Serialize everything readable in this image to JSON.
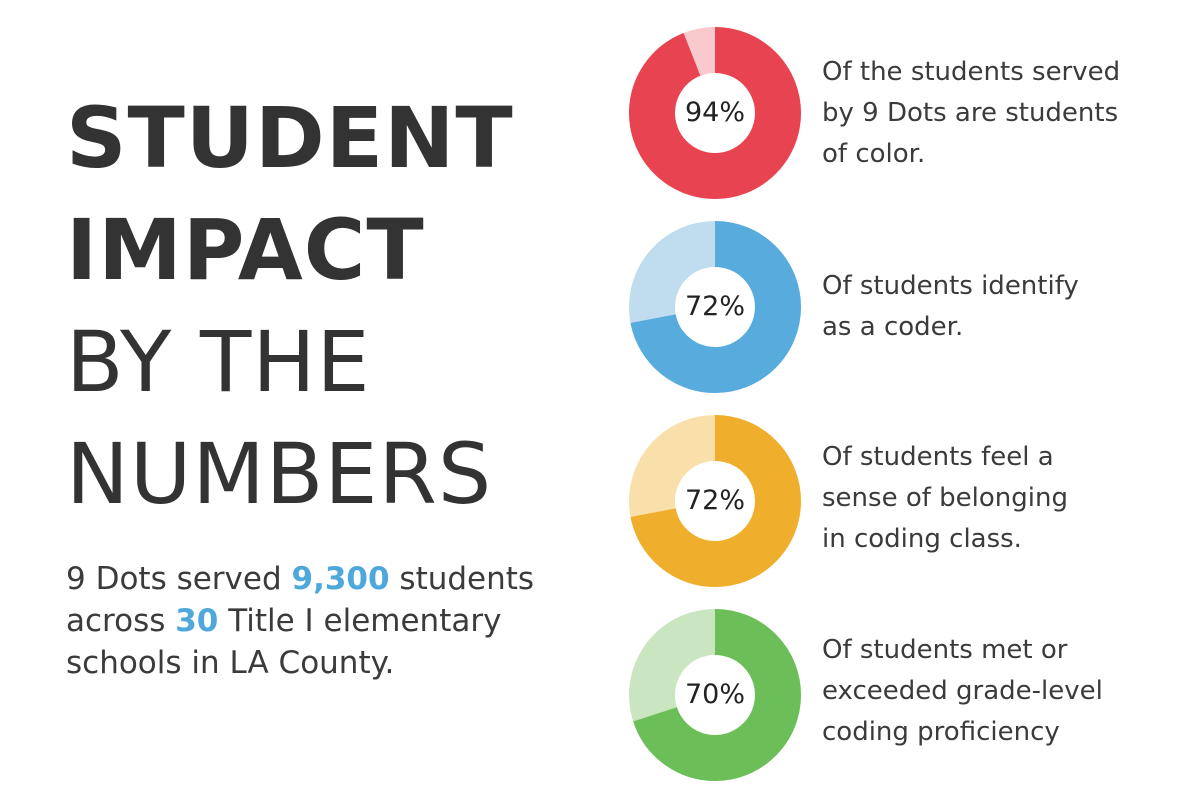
{
  "title": {
    "line1": "STUDENT",
    "line2": "IMPACT",
    "line3": "BY THE",
    "line4": "NUMBERS"
  },
  "summary": {
    "part1": "9 Dots served ",
    "students_count": "9,300",
    "part2": " students across ",
    "schools_count": "30",
    "part3": " Title I elementary schools in LA County."
  },
  "colors": {
    "highlight": "#4fa8dc",
    "red": "#e84350",
    "red_light": "#f8c9cd",
    "blue": "#58abdd",
    "blue_light": "#bfddef",
    "yellow": "#efaf2c",
    "yellow_light": "#f9e0ab",
    "green": "#6cbe58",
    "green_light": "#c9e6c1"
  },
  "chart_data": [
    {
      "type": "pie",
      "label": "94%",
      "value": 94,
      "color": "#e84350",
      "rest_color": "#f8c9cd",
      "description_lines": [
        "Of the students served",
        "by 9 Dots are students",
        "of color."
      ]
    },
    {
      "type": "pie",
      "label": "72%",
      "value": 72,
      "color": "#58abdd",
      "rest_color": "#bfddef",
      "description_lines": [
        "Of students identify",
        "as a coder."
      ]
    },
    {
      "type": "pie",
      "label": "72%",
      "value": 72,
      "color": "#efaf2c",
      "rest_color": "#f9e0ab",
      "description_lines": [
        "Of students feel a",
        "sense of belonging",
        "in coding class."
      ]
    },
    {
      "type": "pie",
      "label": "70%",
      "value": 70,
      "color": "#6cbe58",
      "rest_color": "#c9e6c1",
      "description_lines": [
        "Of students met or",
        "exceeded grade-level",
        "coding proficiency"
      ]
    }
  ]
}
